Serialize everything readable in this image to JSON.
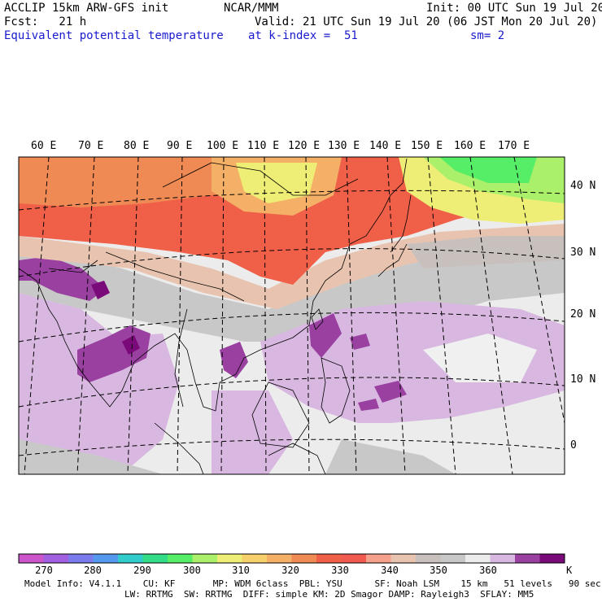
{
  "header": {
    "left_line1": "ACCLIP 15km ARW-GFS init",
    "left_line2": "Fcst:   21 h",
    "center_line1": "NCAR/MMM",
    "init": "Init: 00 UTC Sun 19 Jul 20",
    "valid": "Valid: 21 UTC Sun 19 Jul 20 (06 JST Mon 20 Jul 20)",
    "field": "Equivalent potential temperature",
    "level": "at k-index =  51",
    "smooth": "sm= 2"
  },
  "map": {
    "lon_labels": [
      "60 E",
      "70 E",
      "80 E",
      "90 E",
      "100 E",
      "110 E",
      "120 E",
      "130 E",
      "140 E",
      "150 E",
      "160 E",
      "170 E"
    ],
    "lat_labels": [
      "40 N",
      "30 N",
      "20 N",
      "10 N",
      "0"
    ]
  },
  "colorbar": {
    "unit": "K",
    "labels": [
      "270",
      "280",
      "290",
      "300",
      "310",
      "320",
      "330",
      "340",
      "350",
      "360"
    ],
    "colors": [
      "#cc55cc",
      "#a060e0",
      "#7b7bee",
      "#5599ee",
      "#33cccc",
      "#33dd88",
      "#55ee66",
      "#aaf06a",
      "#eeee77",
      "#f6d06a",
      "#f4b066",
      "#f08a55",
      "#f06048",
      "#f05a50",
      "#f4a08a",
      "#e8c4b0",
      "#c8c0bc",
      "#c8c8c8",
      "#ececec",
      "#d8b8e0",
      "#9940a0",
      "#7a0a7a"
    ]
  },
  "footer": {
    "line1": "Model Info: V4.1.1    CU: KF       MP: WDM 6class  PBL: YSU      SF: Noah LSM    15 km   51 levels   90 sec",
    "line2": "LW: RRTMG  SW: RRTMG  DIFF: simple KM: 2D Smagor DAMP: Rayleigh3  SFLAY: MM5"
  }
}
